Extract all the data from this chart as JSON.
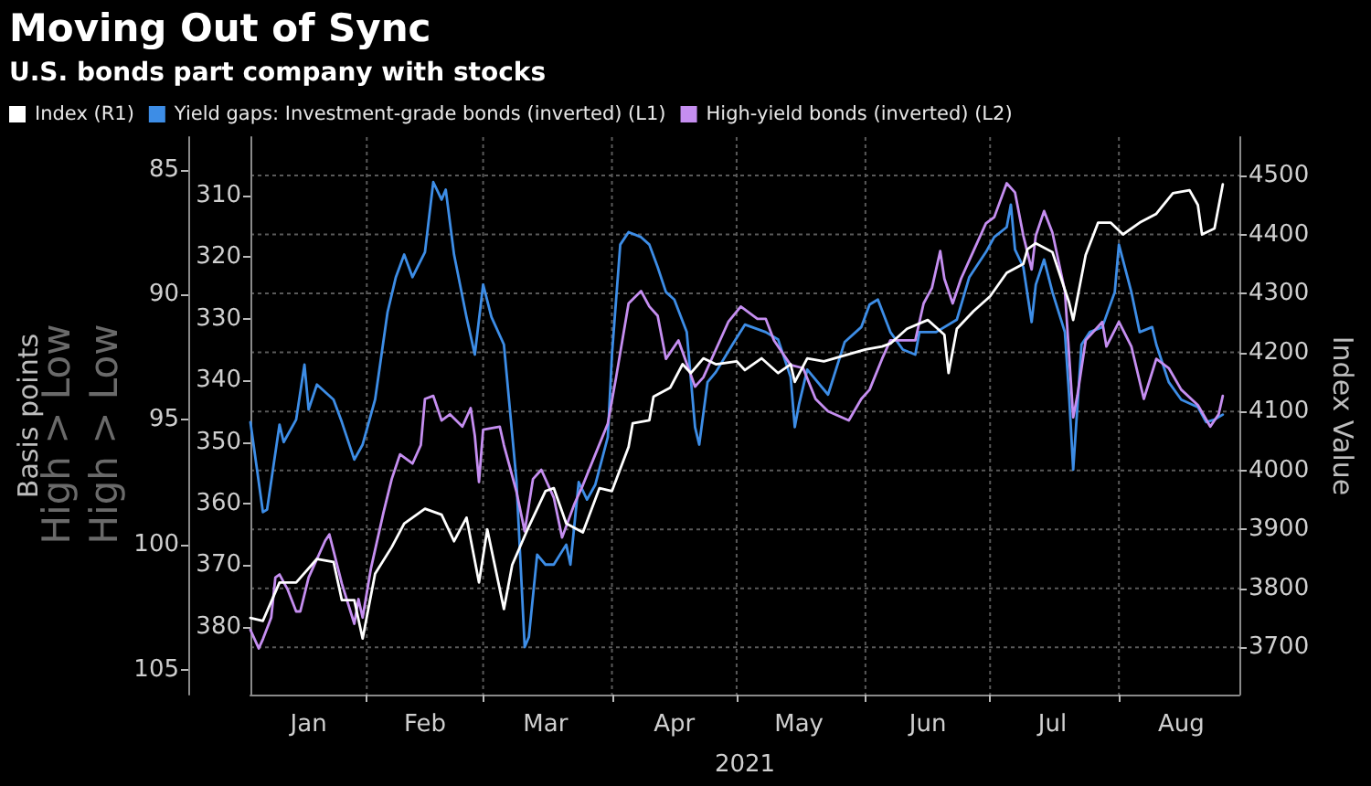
{
  "chart_data": {
    "type": "line",
    "title": "Moving Out of Sync",
    "subtitle": "U.S. bonds part company with stocks",
    "xlabel": "2021",
    "ylabel": "Basis points",
    "y2label": "Index Value",
    "annotations": [
      "High > Low",
      "High > Low"
    ],
    "xlim": [
      "2021-01-04",
      "2021-08-30"
    ],
    "xticks": [
      {
        "value": "2021-02-01",
        "label": null
      },
      {
        "value": "2021-03-01",
        "label": null
      },
      {
        "value": "2021-04-01",
        "label": null
      },
      {
        "value": "2021-05-01",
        "label": null
      },
      {
        "value": "2021-06-01",
        "label": null
      },
      {
        "value": "2021-07-01",
        "label": null
      },
      {
        "value": "2021-08-01",
        "label": null
      },
      {
        "value": "2021-01-18",
        "label": "Jan"
      },
      {
        "value": "2021-02-15",
        "label": "Feb"
      },
      {
        "value": "2021-03-16",
        "label": "Mar"
      },
      {
        "value": "2021-04-16",
        "label": "Apr"
      },
      {
        "value": "2021-05-16",
        "label": "May"
      },
      {
        "value": "2021-06-16",
        "label": "Jun"
      },
      {
        "value": "2021-07-16",
        "label": "Jul"
      },
      {
        "value": "2021-08-16",
        "label": "Aug"
      }
    ],
    "ylim": [
      106,
      83.7
    ],
    "yticks": [
      85,
      90,
      95,
      100,
      105
    ],
    "y3lim": [
      391,
      300.5
    ],
    "y3ticks": [
      310,
      320,
      330,
      340,
      350,
      360,
      370,
      380
    ],
    "y2lim": [
      3620,
      4565
    ],
    "y2ticks": [
      3700,
      3800,
      3900,
      4000,
      4100,
      4200,
      4300,
      4400,
      4500
    ],
    "grid": true,
    "legend": "top left",
    "marker": "none",
    "line_style": "solid",
    "series": [
      {
        "name": "Index (R1)",
        "color": "#ffffff",
        "axis": "y2",
        "x": [
          "2021-01-04",
          "2021-01-07",
          "2021-01-11",
          "2021-01-15",
          "2021-01-20",
          "2021-01-24",
          "2021-01-26",
          "2021-01-29",
          "2021-01-31",
          "2021-02-03",
          "2021-02-07",
          "2021-02-10",
          "2021-02-15",
          "2021-02-19",
          "2021-02-22",
          "2021-02-25",
          "2021-02-28",
          "2021-03-02",
          "2021-03-06",
          "2021-03-08",
          "2021-03-12",
          "2021-03-16",
          "2021-03-18",
          "2021-03-21",
          "2021-03-25",
          "2021-03-29",
          "2021-04-01",
          "2021-04-05",
          "2021-04-06",
          "2021-04-10",
          "2021-04-11",
          "2021-04-15",
          "2021-04-18",
          "2021-04-20",
          "2021-04-23",
          "2021-04-26",
          "2021-05-01",
          "2021-05-03",
          "2021-05-07",
          "2021-05-11",
          "2021-05-14",
          "2021-05-15",
          "2021-05-18",
          "2021-05-22",
          "2021-05-27",
          "2021-06-01",
          "2021-06-05",
          "2021-06-07",
          "2021-06-11",
          "2021-06-16",
          "2021-06-20",
          "2021-06-21",
          "2021-06-23",
          "2021-06-27",
          "2021-07-01",
          "2021-07-05",
          "2021-07-09",
          "2021-07-10",
          "2021-07-12",
          "2021-07-16",
          "2021-07-20",
          "2021-07-21",
          "2021-07-24",
          "2021-07-27",
          "2021-07-30",
          "2021-08-02",
          "2021-08-06",
          "2021-08-10",
          "2021-08-14",
          "2021-08-18",
          "2021-08-20",
          "2021-08-21",
          "2021-08-24",
          "2021-08-26"
        ],
        "values": [
          3750,
          3745,
          3810,
          3810,
          3850,
          3845,
          3780,
          3780,
          3715,
          3825,
          3870,
          3910,
          3935,
          3925,
          3880,
          3920,
          3810,
          3900,
          3765,
          3840,
          3905,
          3965,
          3970,
          3910,
          3895,
          3970,
          3965,
          4040,
          4080,
          4085,
          4125,
          4140,
          4180,
          4165,
          4190,
          4180,
          4185,
          4170,
          4190,
          4165,
          4180,
          4150,
          4190,
          4185,
          4195,
          4205,
          4210,
          4215,
          4240,
          4255,
          4230,
          4165,
          4240,
          4270,
          4295,
          4335,
          4350,
          4375,
          4385,
          4370,
          4285,
          4255,
          4365,
          4420,
          4420,
          4400,
          4420,
          4435,
          4470,
          4475,
          4450,
          4400,
          4410,
          4485
        ]
      },
      {
        "name": "Yield gaps: Investment-grade bonds (inverted) (L1)",
        "color": "#3d8de6",
        "axis": "y",
        "x": [
          "2021-01-04",
          "2021-01-07",
          "2021-01-08",
          "2021-01-11",
          "2021-01-12",
          "2021-01-15",
          "2021-01-17",
          "2021-01-18",
          "2021-01-20",
          "2021-01-24",
          "2021-01-26",
          "2021-01-29",
          "2021-01-31",
          "2021-02-03",
          "2021-02-06",
          "2021-02-08",
          "2021-02-10",
          "2021-02-12",
          "2021-02-15",
          "2021-02-17",
          "2021-02-19",
          "2021-02-20",
          "2021-02-22",
          "2021-02-25",
          "2021-02-27",
          "2021-03-01",
          "2021-03-03",
          "2021-03-06",
          "2021-03-09",
          "2021-03-11",
          "2021-03-12",
          "2021-03-14",
          "2021-03-16",
          "2021-03-18",
          "2021-03-21",
          "2021-03-22",
          "2021-03-24",
          "2021-03-26",
          "2021-03-28",
          "2021-03-31",
          "2021-04-01",
          "2021-04-03",
          "2021-04-05",
          "2021-04-08",
          "2021-04-10",
          "2021-04-12",
          "2021-04-14",
          "2021-04-16",
          "2021-04-19",
          "2021-04-21",
          "2021-04-22",
          "2021-04-24",
          "2021-04-26",
          "2021-04-30",
          "2021-05-03",
          "2021-05-08",
          "2021-05-11",
          "2021-05-14",
          "2021-05-15",
          "2021-05-16",
          "2021-05-18",
          "2021-05-23",
          "2021-05-27",
          "2021-05-31",
          "2021-06-02",
          "2021-06-04",
          "2021-06-07",
          "2021-06-10",
          "2021-06-13",
          "2021-06-14",
          "2021-06-18",
          "2021-06-23",
          "2021-06-26",
          "2021-06-30",
          "2021-07-02",
          "2021-07-05",
          "2021-07-06",
          "2021-07-07",
          "2021-07-09",
          "2021-07-11",
          "2021-07-12",
          "2021-07-14",
          "2021-07-16",
          "2021-07-19",
          "2021-07-20",
          "2021-07-21",
          "2021-07-23",
          "2021-07-25",
          "2021-07-28",
          "2021-07-31",
          "2021-08-01",
          "2021-08-04",
          "2021-08-06",
          "2021-08-09",
          "2021-08-10",
          "2021-08-13",
          "2021-08-16",
          "2021-08-20",
          "2021-08-22",
          "2021-08-24",
          "2021-08-26"
        ],
        "values": [
          95.1,
          98.7,
          98.6,
          95.2,
          95.9,
          95.0,
          92.8,
          94.6,
          93.6,
          94.2,
          95.1,
          96.6,
          96.0,
          94.2,
          90.7,
          89.3,
          88.4,
          89.3,
          88.3,
          85.5,
          86.2,
          85.8,
          88.4,
          90.9,
          92.4,
          89.6,
          90.9,
          92.0,
          97.4,
          104.1,
          103.7,
          100.4,
          100.8,
          100.8,
          100.0,
          100.8,
          97.5,
          98.2,
          97.6,
          95.7,
          92.4,
          88.0,
          87.5,
          87.7,
          88.0,
          88.9,
          89.9,
          90.2,
          91.5,
          95.3,
          96.0,
          93.5,
          93.1,
          92.0,
          91.2,
          91.5,
          91.8,
          93.3,
          95.3,
          94.4,
          93.0,
          94.0,
          91.9,
          91.3,
          90.4,
          90.2,
          91.5,
          92.2,
          92.4,
          91.5,
          91.5,
          91.0,
          89.3,
          88.3,
          87.7,
          87.3,
          86.4,
          88.2,
          88.9,
          91.1,
          89.6,
          88.6,
          89.9,
          91.5,
          94.0,
          97.0,
          92.0,
          91.5,
          91.3,
          89.9,
          88.0,
          89.9,
          91.5,
          91.3,
          92.0,
          93.5,
          94.2,
          94.5,
          95.1,
          95.0,
          94.8
        ]
      },
      {
        "name": "High-yield bonds (inverted) (L2)",
        "color": "#c58ef0",
        "axis": "y3",
        "x": [
          "2021-01-04",
          "2021-01-06",
          "2021-01-07",
          "2021-01-09",
          "2021-01-10",
          "2021-01-11",
          "2021-01-13",
          "2021-01-15",
          "2021-01-16",
          "2021-01-18",
          "2021-01-22",
          "2021-01-23",
          "2021-01-26",
          "2021-01-29",
          "2021-01-30",
          "2021-01-31",
          "2021-02-02",
          "2021-02-05",
          "2021-02-07",
          "2021-02-09",
          "2021-02-12",
          "2021-02-14",
          "2021-02-15",
          "2021-02-17",
          "2021-02-19",
          "2021-02-21",
          "2021-02-24",
          "2021-02-26",
          "2021-02-27",
          "2021-02-28",
          "2021-03-01",
          "2021-03-05",
          "2021-03-06",
          "2021-03-09",
          "2021-03-11",
          "2021-03-13",
          "2021-03-15",
          "2021-03-18",
          "2021-03-20",
          "2021-03-23",
          "2021-03-25",
          "2021-03-28",
          "2021-03-31",
          "2021-04-02",
          "2021-04-05",
          "2021-04-08",
          "2021-04-10",
          "2021-04-12",
          "2021-04-14",
          "2021-04-17",
          "2021-04-21",
          "2021-04-23",
          "2021-04-26",
          "2021-04-29",
          "2021-05-02",
          "2021-05-06",
          "2021-05-08",
          "2021-05-10",
          "2021-05-14",
          "2021-05-17",
          "2021-05-20",
          "2021-05-23",
          "2021-05-28",
          "2021-05-31",
          "2021-06-02",
          "2021-06-05",
          "2021-06-07",
          "2021-06-13",
          "2021-06-15",
          "2021-06-17",
          "2021-06-19",
          "2021-06-20",
          "2021-06-22",
          "2021-06-24",
          "2021-06-27",
          "2021-06-30",
          "2021-07-02",
          "2021-07-05",
          "2021-07-07",
          "2021-07-09",
          "2021-07-11",
          "2021-07-12",
          "2021-07-14",
          "2021-07-16",
          "2021-07-19",
          "2021-07-21",
          "2021-07-22",
          "2021-07-24",
          "2021-07-28",
          "2021-07-29",
          "2021-08-01",
          "2021-08-04",
          "2021-08-07",
          "2021-08-10",
          "2021-08-13",
          "2021-08-16",
          "2021-08-20",
          "2021-08-23",
          "2021-08-25",
          "2021-08-26"
        ],
        "values": [
          380.5,
          383.5,
          382,
          378.5,
          372,
          371.5,
          374,
          377.5,
          377.5,
          372,
          366,
          365,
          373,
          379.5,
          375.5,
          378.5,
          370.5,
          361.5,
          356,
          352,
          353.5,
          350.5,
          343,
          342.5,
          346.5,
          345.5,
          347.5,
          344.5,
          349,
          356.5,
          348,
          347.5,
          350.5,
          358,
          364.5,
          356,
          354.5,
          359,
          365.5,
          360,
          357,
          352,
          347,
          339.5,
          327.5,
          325.5,
          328,
          329.5,
          336.5,
          333.5,
          341,
          339.5,
          335,
          330.5,
          328,
          330,
          330,
          333.5,
          337.5,
          338,
          343,
          345,
          346.5,
          343,
          341.5,
          336.5,
          333.5,
          333.5,
          327.5,
          325,
          319,
          323.5,
          327.5,
          323.5,
          319,
          314.5,
          313.5,
          308,
          309.5,
          316.5,
          322,
          316.5,
          312.5,
          316,
          325.5,
          346,
          342.5,
          333.5,
          330.5,
          334.5,
          330.5,
          334.5,
          343,
          336.5,
          338,
          341.5,
          344,
          347.5,
          345.5,
          342.5
        ]
      }
    ]
  }
}
